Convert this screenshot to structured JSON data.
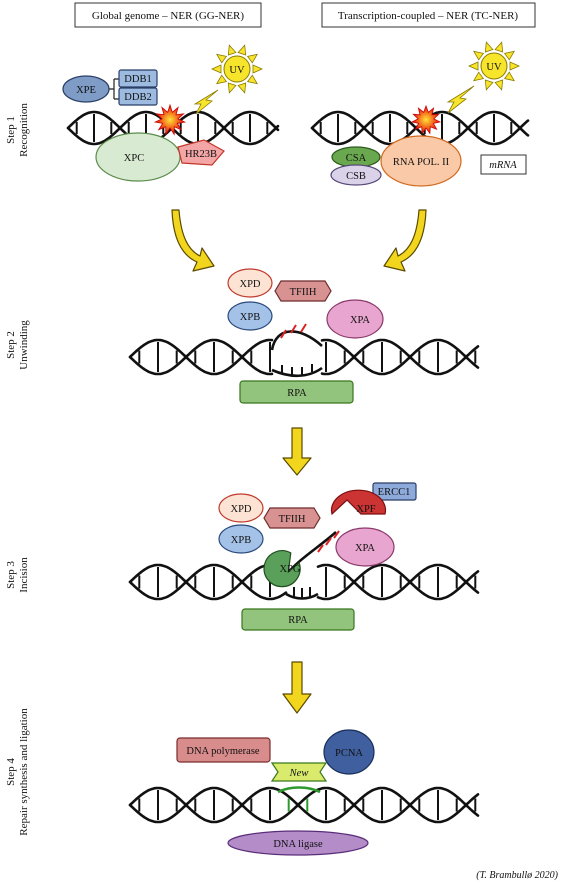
{
  "headers": {
    "gg_ner": "Global genome – NER (GG-NER)",
    "tc_ner": "Transcription-coupled – NER (TC-NER)"
  },
  "steps": {
    "step1": [
      "Step 1",
      "Recognition"
    ],
    "step2": [
      "Step 2",
      "Unwinding"
    ],
    "step3": [
      "Step 3",
      "Incision"
    ],
    "step4": [
      "Step 4",
      "Repair synthesis and ligation"
    ]
  },
  "step1": {
    "xpe": "XPE",
    "ddb1": "DDB1",
    "ddb2": "DDB2",
    "xpc": "XPC",
    "hr23b": "HR23B",
    "uv": "UV",
    "csa": "CSA",
    "csb": "CSB",
    "rna_pol": "RNA POL. II",
    "mrna": "mRNA"
  },
  "step2": {
    "xpd": "XPD",
    "tfiih": "TFIIH",
    "xpb": "XPB",
    "xpa": "XPA",
    "rpa": "RPA"
  },
  "step3": {
    "ercc1": "ERCC1",
    "xpd": "XPD",
    "tfiih": "TFIIH",
    "xpf": "XPF",
    "xpb": "XPB",
    "xpa": "XPA",
    "xpg": "XPG",
    "rpa": "RPA"
  },
  "step4": {
    "dna_polymerase": "DNA polymerase",
    "pcna": "PCNA",
    "new": "New",
    "dna_ligase": "DNA ligase"
  },
  "credit": "(T. Brambullø 2020)",
  "colors": {
    "xpe": "#7f9cc7",
    "ddb": "#9dbbe0",
    "xpc": "#d9ead3",
    "hr23b": "#f4a6a6",
    "uv_sun": "#f7e52b",
    "damage": "#e8201e",
    "csa": "#6aa84f",
    "csb": "#d9d2e9",
    "rna_pol": "#f9c9a8",
    "xpd": "#fde3d3",
    "tfiih": "#d99292",
    "xpb": "#a4c2e8",
    "xpa": "#e8a5cf",
    "rpa": "#93c47d",
    "xpf": "#cc3333",
    "ercc1": "#8eaadb",
    "xpg": "#5aa05a",
    "dna_polymerase": "#d98c8c",
    "pcna": "#3f5f9f",
    "new_patch": "#d9ea6c",
    "dna_ligase": "#b48cc8",
    "arrow": "#f2d61d"
  }
}
